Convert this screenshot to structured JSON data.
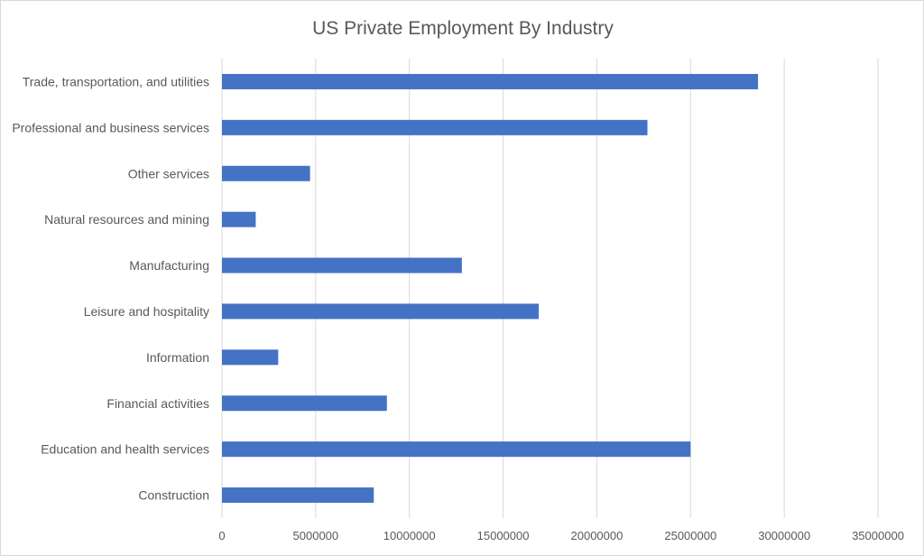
{
  "chart_data": {
    "type": "bar",
    "orientation": "horizontal",
    "title": "US Private Employment By Industry",
    "xlabel": "",
    "ylabel": "",
    "categories": [
      "Trade, transportation, and utilities",
      "Professional and business services",
      "Other services",
      "Natural resources and mining",
      "Manufacturing",
      "Leisure and hospitality",
      "Information",
      "Financial activities",
      "Education and health services",
      "Construction"
    ],
    "values": [
      28600000,
      22700000,
      4700000,
      1800000,
      12800000,
      16900000,
      3000000,
      8800000,
      25000000,
      8100000
    ],
    "xlim": [
      0,
      35000000
    ],
    "ticks": [
      "0",
      "5000000",
      "10000000",
      "15000000",
      "20000000",
      "25000000",
      "30000000",
      "35000000"
    ],
    "grid": true,
    "legend": "none",
    "bar_color": "#4472c4"
  }
}
